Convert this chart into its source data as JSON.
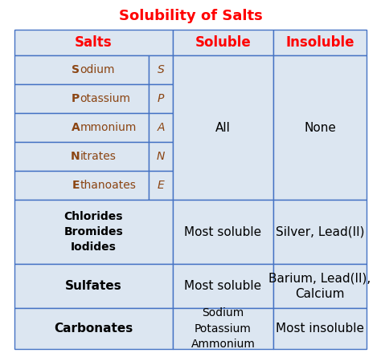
{
  "title": "Solubility of Salts",
  "title_color": "#FF0000",
  "title_fontsize": 13,
  "header_color": "#FF0000",
  "cell_bg": "#dce6f1",
  "border_color": "#4472c4",
  "fig_bg": "#ffffff",
  "headers": [
    "Salts",
    "Soluble",
    "Insoluble"
  ],
  "spane_names": [
    "Sodium",
    "Potassium",
    "Ammonium",
    "Nitrates",
    "Ethanoates"
  ],
  "spane_letters": [
    "S",
    "P",
    "A",
    "N",
    "E"
  ],
  "spane_color": "#8B4513",
  "row2_salts": "Chlorides\nBromides\nIodides",
  "row2_soluble": "Most soluble",
  "row2_insoluble": "Silver, Lead(II)",
  "row3_salts": "Sulfates",
  "row3_soluble": "Most soluble",
  "row3_insoluble": "Barium, Lead(II),\nCalcium",
  "row4_salts": "Carbonates",
  "row4_soluble": "Sodium\nPotassium\nAmmonium",
  "row4_insoluble": "Most insoluble",
  "spane_soluble": "All",
  "spane_insoluble": "None"
}
